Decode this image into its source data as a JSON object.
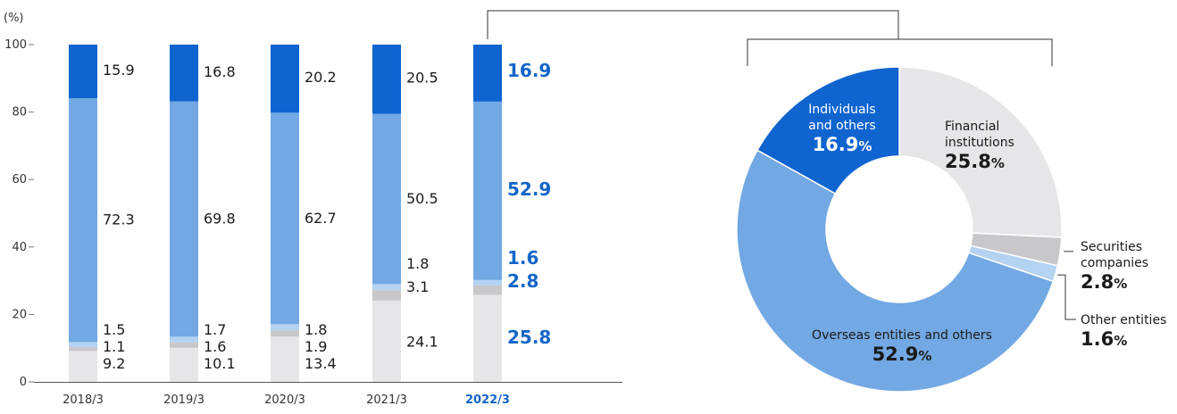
{
  "chart_data": [
    {
      "type": "bar",
      "stacked": true,
      "ylabel": "(%)",
      "ylim": [
        0,
        100
      ],
      "yticks": [
        "0",
        "20",
        "40",
        "60",
        "80",
        "100"
      ],
      "categories": [
        "2018/3",
        "2019/3",
        "2020/3",
        "2021/3",
        "2022/3"
      ],
      "highlight_category": "2022/3",
      "series": [
        {
          "key": "financial",
          "values": [
            9.2,
            10.1,
            13.4,
            24.1,
            25.8
          ],
          "labels": [
            "9.2",
            "10.1",
            "13.4",
            "24.1",
            "25.8"
          ],
          "color": "#e6e6e8"
        },
        {
          "key": "securities",
          "values": [
            1.1,
            1.6,
            1.9,
            3.1,
            2.8
          ],
          "labels": [
            "1.1",
            "1.6",
            "1.9",
            "3.1",
            "2.8"
          ],
          "color": "#c8c8ca"
        },
        {
          "key": "other",
          "values": [
            1.5,
            1.7,
            1.8,
            1.8,
            1.6
          ],
          "labels": [
            "1.5",
            "1.7",
            "1.8",
            "1.8",
            "1.6"
          ],
          "color": "#b4d2f2"
        },
        {
          "key": "overseas",
          "values": [
            72.3,
            69.8,
            62.7,
            50.5,
            52.9
          ],
          "labels": [
            "72.3",
            "69.8",
            "62.7",
            "50.5",
            "52.9"
          ],
          "color": "#72a8e3"
        },
        {
          "key": "individuals",
          "values": [
            15.9,
            16.8,
            20.2,
            20.5,
            16.9
          ],
          "labels": [
            "15.9",
            "16.8",
            "20.2",
            "20.5",
            "16.9"
          ],
          "color": "#0f64d0"
        }
      ]
    },
    {
      "type": "pie",
      "variant": "donut",
      "slices": [
        {
          "key": "financial",
          "name": "Financial institutions",
          "name_lines": [
            "Financial",
            "institutions"
          ],
          "value": 25.8,
          "value_label": "25.8",
          "color": "#e6e6e8"
        },
        {
          "key": "securities",
          "name": "Securities companies",
          "name_lines": [
            "Securities",
            "companies"
          ],
          "value": 2.8,
          "value_label": "2.8",
          "color": "#c8c8ca"
        },
        {
          "key": "other",
          "name": "Other entities",
          "name_lines": [
            "Other entities"
          ],
          "value": 1.6,
          "value_label": "1.6",
          "color": "#b4d2f2"
        },
        {
          "key": "overseas",
          "name": "Overseas entities and others",
          "name_lines": [
            "Overseas entities and others"
          ],
          "value": 52.9,
          "value_label": "52.9",
          "color": "#72a8e3"
        },
        {
          "key": "individuals",
          "name": "Individuals and others",
          "name_lines": [
            "Individuals",
            "and others"
          ],
          "value": 16.9,
          "value_label": "16.9",
          "color": "#0f64d0"
        }
      ],
      "percent_sign": "%"
    }
  ]
}
